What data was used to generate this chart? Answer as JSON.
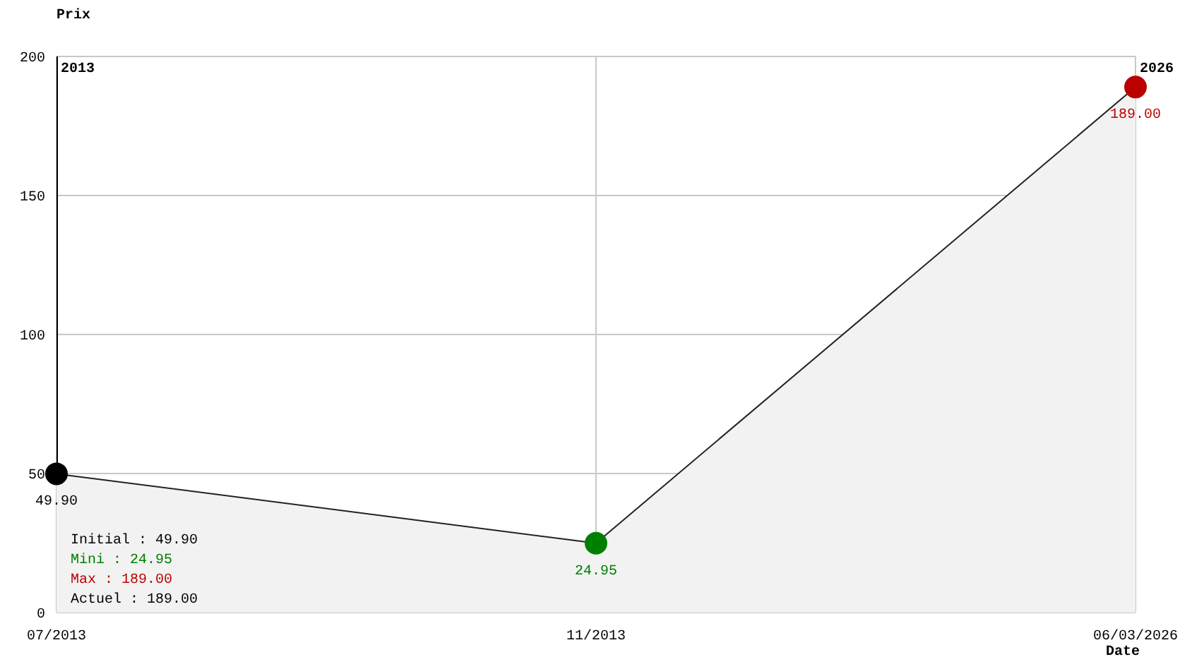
{
  "chart_data": {
    "type": "area",
    "xlabel": "Date",
    "ylabel": "Prix",
    "categories": [
      "07/2013",
      "11/2013",
      "06/03/2026"
    ],
    "values": [
      49.9,
      24.95,
      189
    ],
    "color": "#f2f2f2",
    "colors": [
      "#000000",
      "#008000",
      "#bb0000"
    ],
    "value_labels": [
      "49.90",
      "24.95",
      "189.00"
    ],
    "ylim": [
      0,
      200
    ],
    "yticks": [
      0,
      50,
      100,
      150,
      200
    ],
    "grid": true,
    "marker": "circle",
    "annotations": [
      "2013",
      "2026",
      "Initial : 49.90",
      "Mini : 24.95",
      "Max : 189.00",
      "Actuel : 189.00"
    ]
  }
}
